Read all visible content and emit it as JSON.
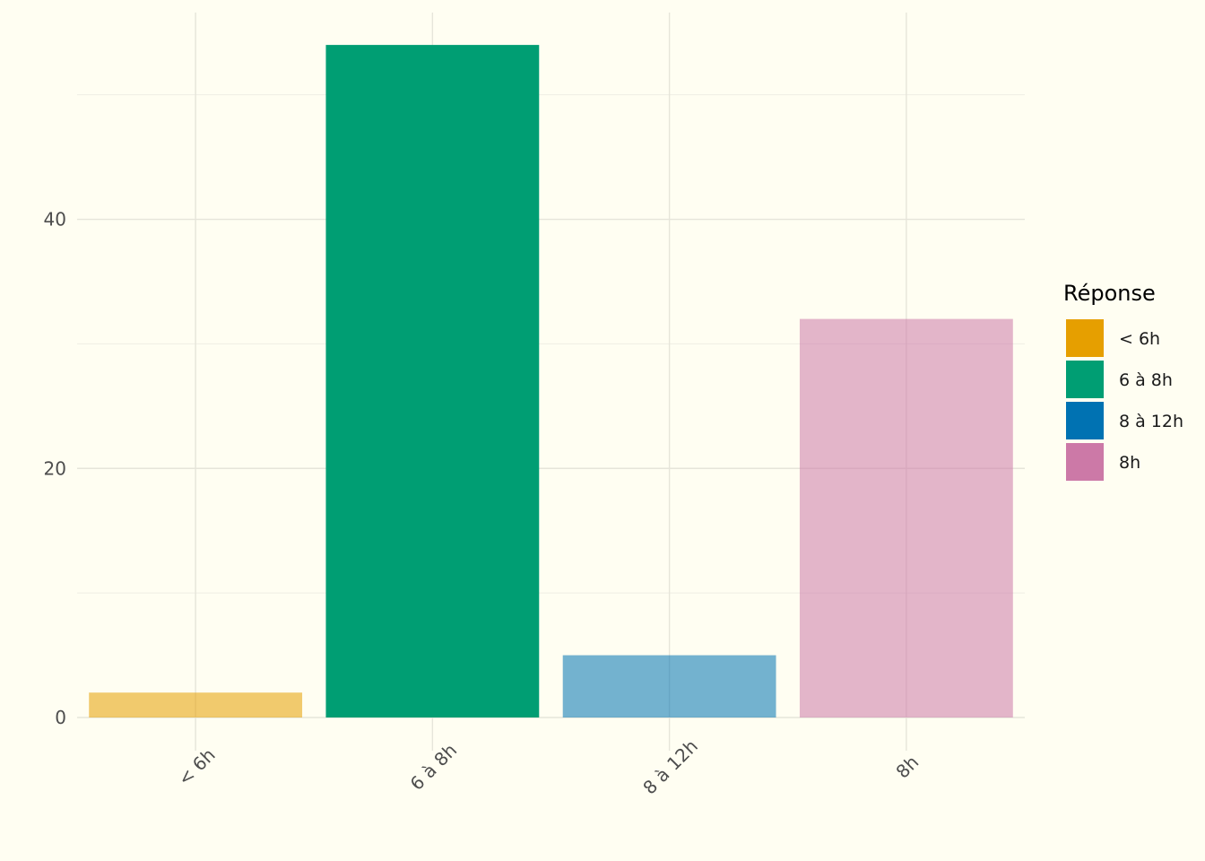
{
  "chart_data": {
    "type": "bar",
    "title": "",
    "xlabel": "",
    "ylabel": "",
    "categories": [
      "< 6h",
      "6 à 8h",
      "8 à 12h",
      "8h"
    ],
    "values": [
      2,
      54,
      5,
      32
    ],
    "ylim": [
      0,
      56.6
    ],
    "yticks": [
      0,
      20,
      40
    ],
    "grid": true,
    "legend": {
      "title": "Réponse",
      "placement": "right",
      "entries": [
        {
          "label": "< 6h",
          "color": "#E69F00"
        },
        {
          "label": "6 à 8h",
          "color": "#009E73"
        },
        {
          "label": "8 à 12h",
          "color": "#0072B2"
        },
        {
          "label": "8h",
          "color": "#CC79A7"
        }
      ]
    },
    "bar_colors": [
      "#E69F00",
      "#009E73",
      "#0072B2",
      "#CC79A7"
    ],
    "bar_opacity": [
      0.55,
      1.0,
      0.55,
      0.55
    ]
  }
}
